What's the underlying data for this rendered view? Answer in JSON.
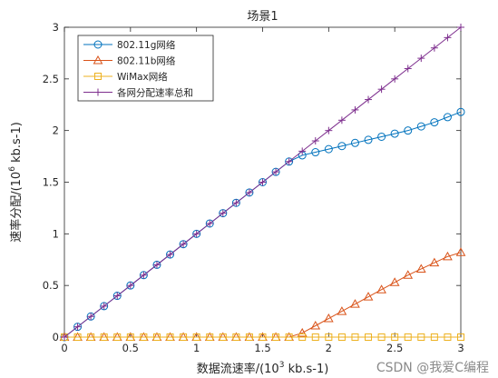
{
  "chart_data": {
    "type": "line",
    "title": "场景1",
    "xlabel_main": "数据流速率/(10",
    "xlabel_sup": "3",
    "xlabel_tail": " kb.s-1)",
    "ylabel_main": "速率分配/(10",
    "ylabel_sup": "6",
    "ylabel_tail": " kb.s-1)",
    "xlim": [
      0,
      3
    ],
    "ylim": [
      0,
      3
    ],
    "x_ticks": [
      0,
      0.5,
      1,
      1.5,
      2,
      2.5,
      3
    ],
    "x_tick_labels": [
      "0",
      "0.5",
      "1",
      "1.5",
      "2",
      "2.5",
      "3"
    ],
    "y_ticks": [
      0,
      0.5,
      1,
      1.5,
      2,
      2.5,
      3
    ],
    "y_tick_labels": [
      "0",
      "0.5",
      "1",
      "1.5",
      "2",
      "2.5",
      "3"
    ],
    "grid": false,
    "legend_position": "top-left",
    "x": [
      0,
      0.1,
      0.2,
      0.3,
      0.4,
      0.5,
      0.6,
      0.7,
      0.8,
      0.9,
      1.0,
      1.1,
      1.2,
      1.3,
      1.4,
      1.5,
      1.6,
      1.7,
      1.8,
      1.9,
      2.0,
      2.1,
      2.2,
      2.3,
      2.4,
      2.5,
      2.6,
      2.7,
      2.8,
      2.9,
      3.0
    ],
    "series": [
      {
        "name": "802.11g网络",
        "color": "#0072BD",
        "marker": "circle",
        "values": [
          0,
          0.1,
          0.2,
          0.3,
          0.4,
          0.5,
          0.6,
          0.7,
          0.8,
          0.9,
          1.0,
          1.1,
          1.2,
          1.3,
          1.4,
          1.5,
          1.6,
          1.7,
          1.76,
          1.79,
          1.82,
          1.85,
          1.88,
          1.91,
          1.94,
          1.97,
          2.0,
          2.04,
          2.08,
          2.13,
          2.18
        ]
      },
      {
        "name": "802.11b网络",
        "color": "#D95319",
        "marker": "triangle",
        "values": [
          0,
          0,
          0,
          0,
          0,
          0,
          0,
          0,
          0,
          0,
          0,
          0,
          0,
          0,
          0,
          0,
          0,
          0,
          0.04,
          0.11,
          0.18,
          0.25,
          0.32,
          0.39,
          0.46,
          0.53,
          0.6,
          0.66,
          0.72,
          0.78,
          0.82
        ]
      },
      {
        "name": "WiMax网络",
        "color": "#EDB120",
        "marker": "square",
        "values": [
          0,
          0,
          0,
          0,
          0,
          0,
          0,
          0,
          0,
          0,
          0,
          0,
          0,
          0,
          0,
          0,
          0,
          0,
          0,
          0,
          0,
          0,
          0,
          0,
          0,
          0,
          0,
          0,
          0,
          0,
          0
        ]
      },
      {
        "name": "各网分配速率总和",
        "color": "#7E2F8E",
        "marker": "plus",
        "values": [
          0,
          0.1,
          0.2,
          0.3,
          0.4,
          0.5,
          0.6,
          0.7,
          0.8,
          0.9,
          1.0,
          1.1,
          1.2,
          1.3,
          1.4,
          1.5,
          1.6,
          1.7,
          1.8,
          1.9,
          2.0,
          2.1,
          2.2,
          2.3,
          2.4,
          2.5,
          2.6,
          2.7,
          2.8,
          2.9,
          3.0
        ]
      }
    ]
  },
  "watermark": "CSDN @我爱C编程"
}
